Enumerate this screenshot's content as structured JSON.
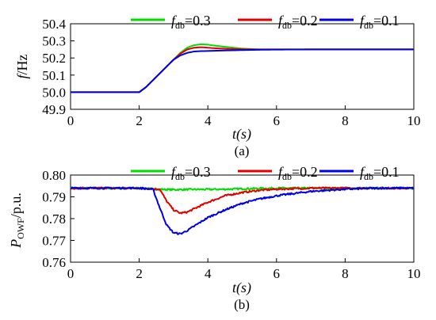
{
  "colors": {
    "fdb_0_3": "#00dd00",
    "fdb_0_2": "#e00000",
    "fdb_0_1": "#0000e0"
  },
  "chart_data": [
    {
      "type": "line",
      "caption": "(a)",
      "xlabel": "t(s)",
      "ylabel_main": "f",
      "ylabel_rest": "/Hz",
      "xlim": [
        0,
        10
      ],
      "ylim": [
        49.9,
        50.4
      ],
      "xticks": [
        "0",
        "2",
        "4",
        "6",
        "8",
        "10"
      ],
      "yticks": [
        "49.9",
        "50.0",
        "50.1",
        "50.2",
        "50.3",
        "50.4"
      ],
      "grid": false,
      "legend_position": "top",
      "legend": [
        {
          "symbol": "f",
          "subscript": "db",
          "value": "=0.3"
        },
        {
          "symbol": "f",
          "subscript": "db",
          "value": "=0.2"
        },
        {
          "symbol": "f",
          "subscript": "db",
          "value": "=0.1"
        }
      ],
      "series": [
        {
          "name": "fdb=0.3",
          "color": "#00dd00",
          "x": [
            0,
            2.0,
            2.2,
            2.5,
            2.8,
            3.0,
            3.2,
            3.4,
            3.6,
            3.8,
            4.0,
            4.2,
            4.5,
            5.0,
            5.5,
            6.0,
            7.0,
            8.0,
            9.0,
            10.0
          ],
          "y": [
            50.0,
            50.0,
            50.03,
            50.09,
            50.15,
            50.19,
            50.23,
            50.26,
            50.275,
            50.28,
            50.278,
            50.272,
            50.265,
            50.255,
            50.25,
            50.25,
            50.25,
            50.25,
            50.25,
            50.25
          ]
        },
        {
          "name": "fdb=0.2",
          "color": "#e00000",
          "x": [
            0,
            2.0,
            2.2,
            2.5,
            2.8,
            3.0,
            3.2,
            3.4,
            3.6,
            3.8,
            4.0,
            4.2,
            4.5,
            5.0,
            5.5,
            6.0,
            7.0,
            8.0,
            9.0,
            10.0
          ],
          "y": [
            50.0,
            50.0,
            50.03,
            50.09,
            50.15,
            50.19,
            50.225,
            50.25,
            50.26,
            50.263,
            50.26,
            50.257,
            50.254,
            50.251,
            50.25,
            50.25,
            50.25,
            50.25,
            50.25,
            50.25
          ]
        },
        {
          "name": "fdb=0.1",
          "color": "#0000e0",
          "x": [
            0,
            2.0,
            2.2,
            2.5,
            2.8,
            3.0,
            3.2,
            3.4,
            3.6,
            3.8,
            4.0,
            4.2,
            4.5,
            5.0,
            5.5,
            6.0,
            7.0,
            8.0,
            9.0,
            10.0
          ],
          "y": [
            50.0,
            50.0,
            50.03,
            50.09,
            50.15,
            50.19,
            50.215,
            50.23,
            50.238,
            50.24,
            50.241,
            50.242,
            50.244,
            50.246,
            50.248,
            50.249,
            50.25,
            50.25,
            50.25,
            50.25
          ]
        }
      ]
    },
    {
      "type": "line",
      "caption": "(b)",
      "xlabel": "t(s)",
      "ylabel_main": "P",
      "ylabel_sub": "OWF",
      "ylabel_rest": "/p.u.",
      "xlim": [
        0,
        10
      ],
      "ylim": [
        0.76,
        0.8
      ],
      "xticks": [
        "0",
        "2",
        "4",
        "6",
        "8",
        "10"
      ],
      "yticks": [
        "0.76",
        "0.77",
        "0.78",
        "0.79",
        "0.80"
      ],
      "grid": false,
      "legend_position": "top",
      "legend": [
        {
          "symbol": "f",
          "subscript": "db",
          "value": "=0.3"
        },
        {
          "symbol": "f",
          "subscript": "db",
          "value": "=0.2"
        },
        {
          "symbol": "f",
          "subscript": "db",
          "value": "=0.1"
        }
      ],
      "series": [
        {
          "name": "fdb=0.3",
          "color": "#00dd00",
          "x": [
            0,
            2.0,
            2.5,
            3.0,
            3.5,
            4.0,
            4.5,
            5.0,
            6.0,
            7.0,
            8.0,
            9.0,
            10.0
          ],
          "y": [
            0.794,
            0.794,
            0.7935,
            0.7933,
            0.7934,
            0.7934,
            0.7935,
            0.7937,
            0.794,
            0.794,
            0.794,
            0.794,
            0.794
          ]
        },
        {
          "name": "fdb=0.2",
          "color": "#e00000",
          "x": [
            0,
            2.0,
            2.6,
            2.8,
            3.0,
            3.2,
            3.4,
            3.6,
            4.0,
            4.5,
            5.0,
            5.5,
            6.0,
            7.0,
            8.0,
            9.0,
            10.0
          ],
          "y": [
            0.794,
            0.794,
            0.7935,
            0.788,
            0.784,
            0.7825,
            0.783,
            0.7845,
            0.7875,
            0.7905,
            0.792,
            0.793,
            0.7935,
            0.794,
            0.794,
            0.794,
            0.794
          ]
        },
        {
          "name": "fdb=0.1",
          "color": "#0000e0",
          "x": [
            0,
            2.0,
            2.4,
            2.6,
            2.8,
            3.0,
            3.2,
            3.4,
            3.6,
            4.0,
            4.5,
            5.0,
            5.5,
            6.0,
            7.0,
            8.0,
            9.0,
            10.0
          ],
          "y": [
            0.794,
            0.794,
            0.7935,
            0.785,
            0.777,
            0.7735,
            0.773,
            0.7745,
            0.7765,
            0.7805,
            0.784,
            0.787,
            0.789,
            0.7905,
            0.7925,
            0.7935,
            0.794,
            0.794
          ]
        }
      ]
    }
  ]
}
